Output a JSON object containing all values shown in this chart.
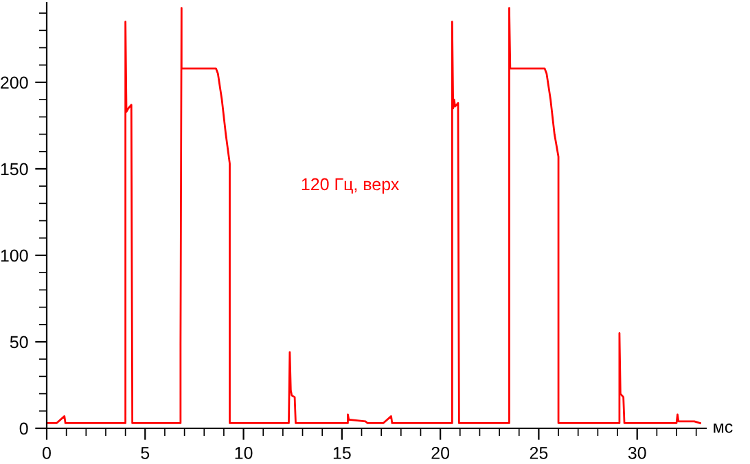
{
  "chart_data": {
    "type": "line",
    "xlabel": "мс",
    "annotations": [
      "120 Гц, верх"
    ],
    "xlim": [
      0,
      33.5
    ],
    "ylim": [
      0,
      246
    ],
    "xticks": [
      0,
      5,
      10,
      15,
      20,
      25,
      30
    ],
    "yticks": [
      0,
      50,
      100,
      150,
      200
    ],
    "grid": false,
    "marker": "none",
    "line_style": "solid",
    "series": [
      {
        "color": "#ff0000",
        "x": [
          0,
          0.5,
          0.9,
          0.95,
          4.0,
          4.0,
          4.05,
          4.15,
          4.3,
          4.35,
          6.8,
          6.8,
          6.85,
          6.85,
          8.6,
          8.7,
          8.9,
          9.1,
          9.3,
          9.3,
          12.3,
          12.35,
          12.4,
          12.45,
          12.6,
          12.65,
          15.3,
          15.3,
          15.35,
          16.2,
          16.3,
          17.1,
          17.5,
          17.55,
          20.6,
          20.6,
          20.65,
          20.7,
          20.75,
          20.9,
          20.95,
          23.5,
          23.5,
          23.55,
          23.55,
          25.3,
          25.4,
          25.6,
          25.8,
          26.0,
          26.0,
          29.1,
          29.1,
          29.15,
          29.3,
          29.35,
          32.0,
          32.05,
          32.1,
          32.9,
          33.2
        ],
        "values": [
          3,
          3,
          7,
          3,
          3,
          235,
          183,
          185,
          187,
          3,
          3,
          48,
          243,
          208,
          208,
          205,
          190,
          170,
          153,
          3,
          3,
          44,
          22,
          19,
          18,
          3,
          3,
          8,
          5,
          4,
          3,
          3,
          7,
          3,
          3,
          235,
          185,
          190,
          186,
          188,
          3,
          3,
          243,
          208,
          208,
          208,
          205,
          190,
          170,
          157,
          3,
          3,
          55,
          20,
          18,
          3,
          3,
          8,
          4,
          4,
          3
        ]
      }
    ]
  }
}
